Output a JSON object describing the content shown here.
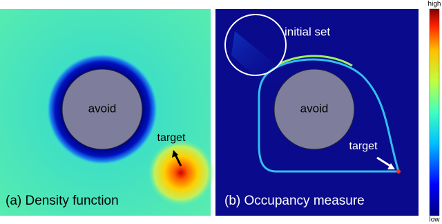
{
  "panels": [
    {
      "caption": "(a) Density function",
      "obstacle_label": "avoid",
      "target_label": "target"
    },
    {
      "caption": "(b) Occupancy measure",
      "initial_set_label": "initial set",
      "obstacle_label": "avoid",
      "target_label": "target"
    }
  ],
  "colorbar": {
    "high_label": "high",
    "low_label": "low"
  }
}
